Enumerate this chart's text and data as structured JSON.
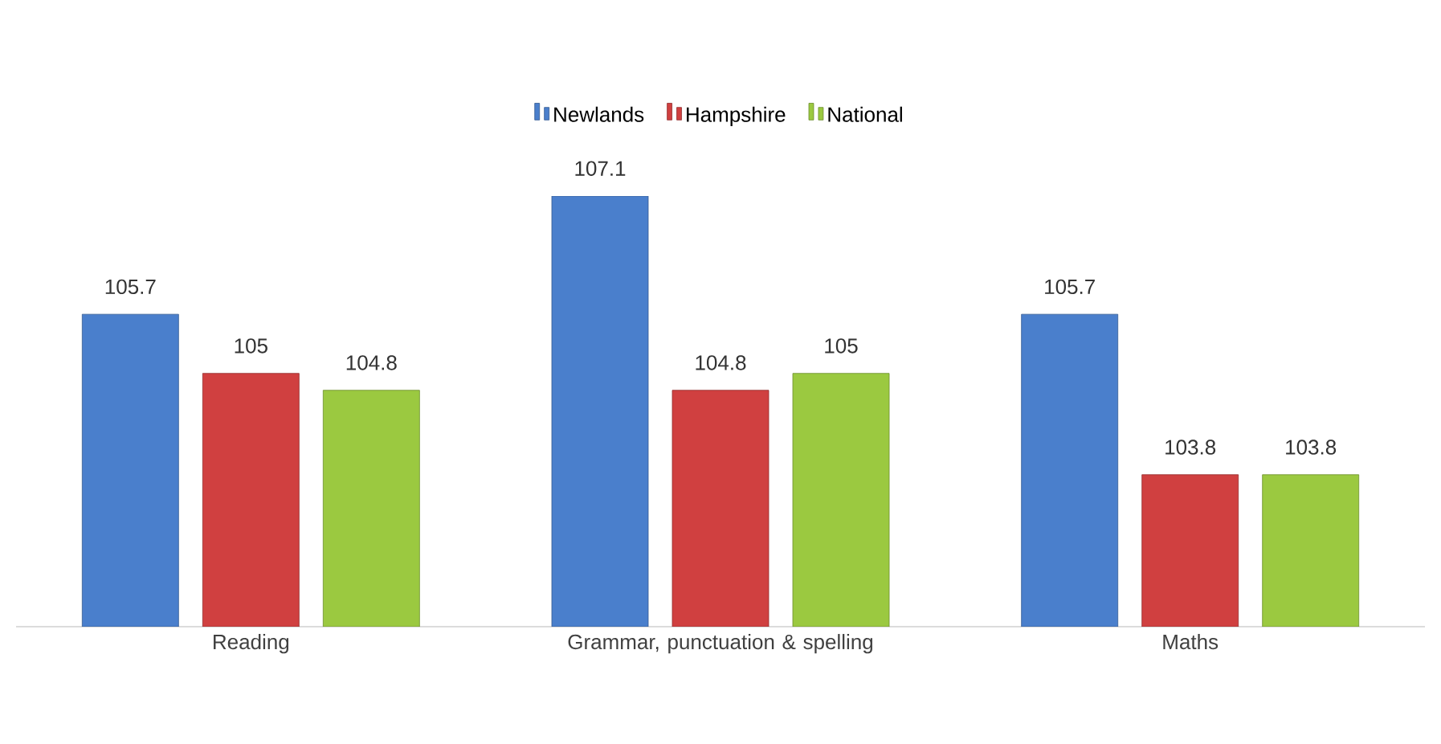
{
  "chart_data": {
    "type": "bar",
    "categories": [
      "Reading",
      "Grammar, punctuation & spelling",
      "Maths"
    ],
    "series": [
      {
        "name": "Newlands",
        "color": "#4a7fcc",
        "values": [
          105.7,
          107.1,
          105.7
        ]
      },
      {
        "name": "Hampshire",
        "color": "#d04040",
        "values": [
          105,
          104.8,
          103.8
        ]
      },
      {
        "name": "National",
        "color": "#9bc940",
        "values": [
          104.8,
          105,
          103.8
        ]
      }
    ],
    "ylim": [
      102,
      107.1
    ],
    "tick_labels": "x",
    "data_labels": true,
    "legend": "top",
    "grid": false
  }
}
